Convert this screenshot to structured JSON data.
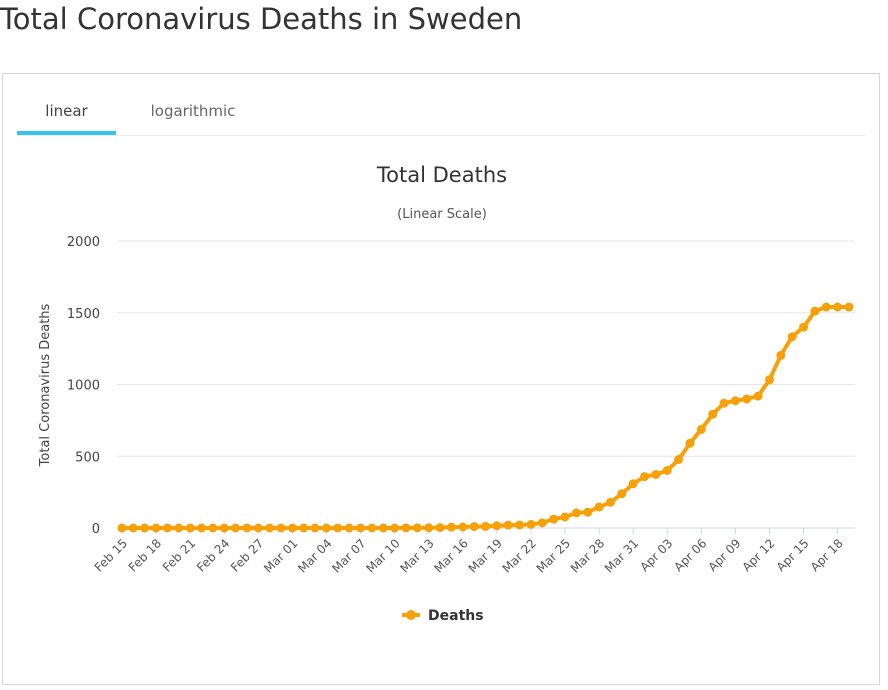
{
  "page": {
    "title": "Total Coronavirus Deaths in Sweden"
  },
  "tabs": [
    {
      "label": "linear",
      "active": true
    },
    {
      "label": "logarithmic",
      "active": false
    }
  ],
  "colors": {
    "series": "#f7a10a",
    "tab_indicator": "#35c4f0",
    "grid": "#e6e6e6",
    "axis": "#ccd6eb"
  },
  "chart_data": {
    "type": "line",
    "title": "Total Deaths",
    "subtitle": "(Linear Scale)",
    "ylabel": "Total Coronavirus Deaths",
    "xlabel": "",
    "ylim": [
      0,
      2000
    ],
    "yticks": [
      0,
      500,
      1000,
      1500,
      2000
    ],
    "grid": true,
    "legend": "bottom-center",
    "x": [
      "Feb 15",
      "Feb 16",
      "Feb 17",
      "Feb 18",
      "Feb 19",
      "Feb 20",
      "Feb 21",
      "Feb 22",
      "Feb 23",
      "Feb 24",
      "Feb 25",
      "Feb 26",
      "Feb 27",
      "Feb 28",
      "Feb 29",
      "Mar 01",
      "Mar 02",
      "Mar 03",
      "Mar 04",
      "Mar 05",
      "Mar 06",
      "Mar 07",
      "Mar 08",
      "Mar 09",
      "Mar 10",
      "Mar 11",
      "Mar 12",
      "Mar 13",
      "Mar 14",
      "Mar 15",
      "Mar 16",
      "Mar 17",
      "Mar 18",
      "Mar 19",
      "Mar 20",
      "Mar 21",
      "Mar 22",
      "Mar 23",
      "Mar 24",
      "Mar 25",
      "Mar 26",
      "Mar 27",
      "Mar 28",
      "Mar 29",
      "Mar 30",
      "Mar 31",
      "Apr 01",
      "Apr 02",
      "Apr 03",
      "Apr 04",
      "Apr 05",
      "Apr 06",
      "Apr 07",
      "Apr 08",
      "Apr 09",
      "Apr 10",
      "Apr 11",
      "Apr 12",
      "Apr 13",
      "Apr 14",
      "Apr 15",
      "Apr 16",
      "Apr 17",
      "Apr 18",
      "Apr 19"
    ],
    "xtick_labels": [
      "Feb 15",
      "Feb 18",
      "Feb 21",
      "Feb 24",
      "Feb 27",
      "Mar 01",
      "Mar 04",
      "Mar 07",
      "Mar 10",
      "Mar 13",
      "Mar 16",
      "Mar 19",
      "Mar 22",
      "Mar 25",
      "Mar 28",
      "Mar 31",
      "Apr 03",
      "Apr 06",
      "Apr 09",
      "Apr 12",
      "Apr 15",
      "Apr 18"
    ],
    "series": [
      {
        "name": "Deaths",
        "values": [
          0,
          0,
          0,
          0,
          0,
          0,
          0,
          0,
          0,
          0,
          0,
          0,
          0,
          0,
          0,
          0,
          0,
          0,
          0,
          0,
          0,
          0,
          0,
          0,
          0,
          1,
          1,
          2,
          3,
          6,
          7,
          10,
          11,
          16,
          20,
          21,
          25,
          36,
          62,
          77,
          105,
          110,
          146,
          179,
          239,
          308,
          358,
          373,
          401,
          477,
          591,
          687,
          793,
          870,
          887,
          899,
          919,
          1033,
          1203,
          1333,
          1400,
          1511,
          1540,
          1540,
          1540
        ]
      }
    ]
  }
}
